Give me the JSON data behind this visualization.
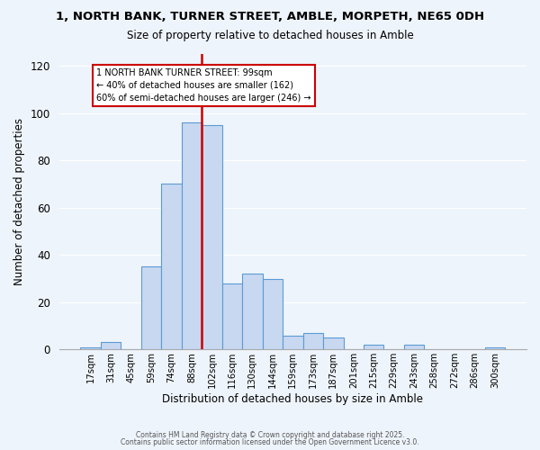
{
  "title": "1, NORTH BANK, TURNER STREET, AMBLE, MORPETH, NE65 0DH",
  "subtitle": "Size of property relative to detached houses in Amble",
  "xlabel": "Distribution of detached houses by size in Amble",
  "ylabel": "Number of detached properties",
  "bar_labels": [
    "17sqm",
    "31sqm",
    "45sqm",
    "59sqm",
    "74sqm",
    "88sqm",
    "102sqm",
    "116sqm",
    "130sqm",
    "144sqm",
    "159sqm",
    "173sqm",
    "187sqm",
    "201sqm",
    "215sqm",
    "229sqm",
    "243sqm",
    "258sqm",
    "272sqm",
    "286sqm",
    "300sqm"
  ],
  "bar_heights": [
    1,
    3,
    0,
    35,
    70,
    96,
    95,
    28,
    32,
    30,
    6,
    7,
    5,
    0,
    2,
    0,
    2,
    0,
    0,
    0,
    1
  ],
  "bar_color": "#c8d8f0",
  "bar_edge_color": "#5b9bd5",
  "vline_color": "#cc0000",
  "annotation_title": "1 NORTH BANK TURNER STREET: 99sqm",
  "annotation_line1": "← 40% of detached houses are smaller (162)",
  "annotation_line2": "60% of semi-detached houses are larger (246) →",
  "annotation_box_color": "#ffffff",
  "annotation_box_edge": "#cc0000",
  "ylim": [
    0,
    125
  ],
  "yticks": [
    0,
    20,
    40,
    60,
    80,
    100,
    120
  ],
  "bg_color": "#eef4fb",
  "grid_color": "#ffffff",
  "footer1": "Contains HM Land Registry data © Crown copyright and database right 2025.",
  "footer2": "Contains public sector information licensed under the Open Government Licence v3.0."
}
